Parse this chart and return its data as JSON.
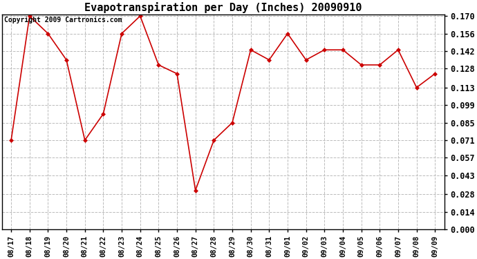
{
  "title": "Evapotranspiration per Day (Inches) 20090910",
  "copyright": "Copyright 2009 Cartronics.com",
  "x_labels": [
    "08/17",
    "08/18",
    "08/19",
    "08/20",
    "08/21",
    "08/22",
    "08/23",
    "08/24",
    "08/25",
    "08/26",
    "08/27",
    "08/28",
    "08/29",
    "08/30",
    "08/31",
    "09/01",
    "09/02",
    "09/03",
    "09/04",
    "09/05",
    "09/06",
    "09/07",
    "09/08",
    "09/09"
  ],
  "y_values": [
    0.071,
    0.17,
    0.156,
    0.135,
    0.071,
    0.092,
    0.156,
    0.17,
    0.131,
    0.124,
    0.031,
    0.071,
    0.085,
    0.143,
    0.135,
    0.156,
    0.135,
    0.143,
    0.143,
    0.131,
    0.131,
    0.143,
    0.113,
    0.124
  ],
  "y_ticks": [
    0.0,
    0.014,
    0.028,
    0.043,
    0.057,
    0.071,
    0.085,
    0.099,
    0.113,
    0.128,
    0.142,
    0.156,
    0.17
  ],
  "line_color": "#cc0000",
  "marker_color": "#cc0000",
  "background_color": "#ffffff",
  "grid_color": "#bbbbbb",
  "ylim_min": 0.0,
  "ylim_max": 0.17,
  "title_fontsize": 11,
  "copyright_fontsize": 7,
  "tick_fontsize": 8.5,
  "xtick_fontsize": 7.5
}
